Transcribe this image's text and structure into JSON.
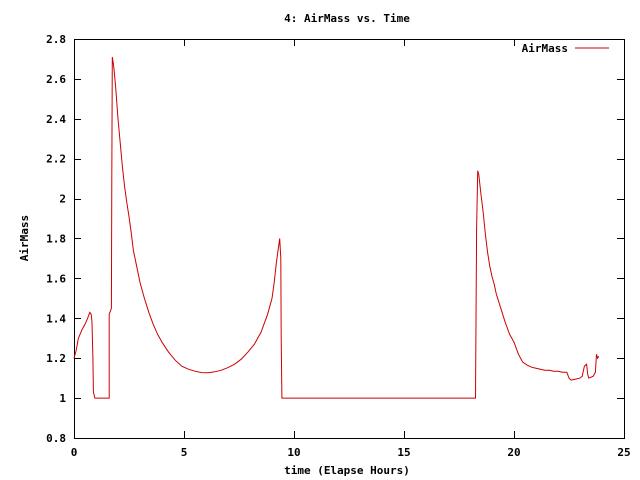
{
  "chart_data": {
    "type": "line",
    "title": "4: AirMass vs. Time",
    "xlabel": "time (Elapse Hours)",
    "ylabel": "AirMass",
    "xlim": [
      0,
      25
    ],
    "ylim": [
      0.8,
      2.8
    ],
    "xticks": [
      0,
      5,
      10,
      15,
      20,
      25
    ],
    "yticks": [
      0.8,
      1,
      1.2,
      1.4,
      1.6,
      1.8,
      2,
      2.2,
      2.4,
      2.6,
      2.8
    ],
    "xtick_labels": [
      "0",
      "5",
      "10",
      "15",
      "20",
      "25"
    ],
    "ytick_labels": [
      "0.8",
      "1",
      "1.2",
      "1.4",
      "1.6",
      "1.8",
      "2",
      "2.2",
      "2.4",
      "2.6",
      "2.8"
    ],
    "grid": false,
    "legend": {
      "placement": "top-right",
      "entries": [
        "AirMass"
      ]
    },
    "series": [
      {
        "name": "AirMass",
        "color": "#cc0000",
        "points": [
          [
            0.0,
            1.2
          ],
          [
            0.1,
            1.24
          ],
          [
            0.2,
            1.3
          ],
          [
            0.35,
            1.34
          ],
          [
            0.5,
            1.37
          ],
          [
            0.62,
            1.4
          ],
          [
            0.72,
            1.43
          ],
          [
            0.78,
            1.42
          ],
          [
            0.82,
            1.38
          ],
          [
            0.86,
            1.2
          ],
          [
            0.88,
            1.03
          ],
          [
            0.95,
            1.0
          ],
          [
            1.05,
            1.0
          ],
          [
            1.2,
            1.0
          ],
          [
            1.4,
            1.0
          ],
          [
            1.6,
            1.0
          ],
          [
            1.6,
            1.42
          ],
          [
            1.7,
            1.45
          ],
          [
            1.72,
            2.1
          ],
          [
            1.74,
            2.71
          ],
          [
            1.78,
            2.68
          ],
          [
            1.82,
            2.65
          ],
          [
            1.9,
            2.55
          ],
          [
            2.0,
            2.4
          ],
          [
            2.1,
            2.28
          ],
          [
            2.2,
            2.16
          ],
          [
            2.3,
            2.06
          ],
          [
            2.4,
            1.98
          ],
          [
            2.5,
            1.91
          ],
          [
            2.6,
            1.83
          ],
          [
            2.7,
            1.74
          ],
          [
            2.85,
            1.66
          ],
          [
            3.0,
            1.58
          ],
          [
            3.2,
            1.5
          ],
          [
            3.4,
            1.43
          ],
          [
            3.6,
            1.37
          ],
          [
            3.8,
            1.32
          ],
          [
            4.0,
            1.28
          ],
          [
            4.3,
            1.23
          ],
          [
            4.6,
            1.19
          ],
          [
            4.9,
            1.16
          ],
          [
            5.2,
            1.145
          ],
          [
            5.5,
            1.135
          ],
          [
            5.8,
            1.128
          ],
          [
            6.1,
            1.127
          ],
          [
            6.4,
            1.132
          ],
          [
            6.7,
            1.14
          ],
          [
            7.0,
            1.153
          ],
          [
            7.3,
            1.17
          ],
          [
            7.6,
            1.195
          ],
          [
            7.9,
            1.23
          ],
          [
            8.2,
            1.27
          ],
          [
            8.5,
            1.33
          ],
          [
            8.8,
            1.42
          ],
          [
            9.0,
            1.5
          ],
          [
            9.1,
            1.58
          ],
          [
            9.2,
            1.68
          ],
          [
            9.3,
            1.76
          ],
          [
            9.35,
            1.8
          ],
          [
            9.4,
            1.7
          ],
          [
            9.42,
            1.3
          ],
          [
            9.45,
            1.0
          ],
          [
            10.0,
            1.0
          ],
          [
            12.0,
            1.0
          ],
          [
            14.0,
            1.0
          ],
          [
            16.0,
            1.0
          ],
          [
            18.0,
            1.0
          ],
          [
            18.25,
            1.0
          ],
          [
            18.3,
            1.85
          ],
          [
            18.35,
            2.14
          ],
          [
            18.4,
            2.12
          ],
          [
            18.5,
            2.02
          ],
          [
            18.6,
            1.93
          ],
          [
            18.7,
            1.82
          ],
          [
            18.8,
            1.73
          ],
          [
            18.9,
            1.66
          ],
          [
            19.0,
            1.61
          ],
          [
            19.1,
            1.57
          ],
          [
            19.2,
            1.52
          ],
          [
            19.4,
            1.45
          ],
          [
            19.6,
            1.38
          ],
          [
            19.8,
            1.32
          ],
          [
            20.0,
            1.28
          ],
          [
            20.1,
            1.25
          ],
          [
            20.2,
            1.22
          ],
          [
            20.3,
            1.2
          ],
          [
            20.4,
            1.18
          ],
          [
            20.6,
            1.165
          ],
          [
            20.8,
            1.155
          ],
          [
            21.0,
            1.15
          ],
          [
            21.2,
            1.145
          ],
          [
            21.4,
            1.14
          ],
          [
            21.6,
            1.14
          ],
          [
            21.8,
            1.135
          ],
          [
            22.0,
            1.135
          ],
          [
            22.2,
            1.13
          ],
          [
            22.4,
            1.13
          ],
          [
            22.5,
            1.1
          ],
          [
            22.6,
            1.09
          ],
          [
            22.8,
            1.095
          ],
          [
            23.0,
            1.1
          ],
          [
            23.1,
            1.11
          ],
          [
            23.2,
            1.16
          ],
          [
            23.3,
            1.17
          ],
          [
            23.35,
            1.12
          ],
          [
            23.4,
            1.1
          ],
          [
            23.5,
            1.105
          ],
          [
            23.6,
            1.11
          ],
          [
            23.7,
            1.13
          ],
          [
            23.75,
            1.22
          ],
          [
            23.8,
            1.2
          ],
          [
            23.85,
            1.21
          ]
        ]
      }
    ]
  }
}
